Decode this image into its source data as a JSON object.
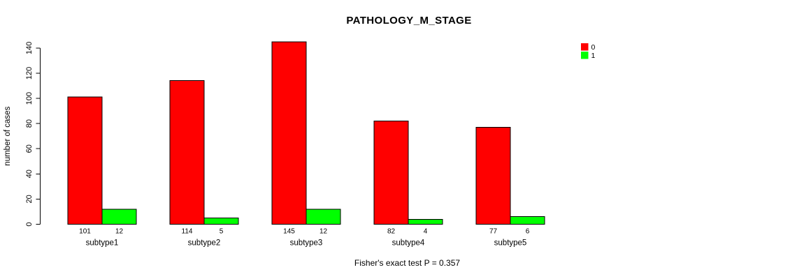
{
  "title": "PATHOLOGY_M_STAGE",
  "caption": "Fisher's exact test P = 0.357",
  "chart_data": {
    "type": "bar",
    "title": "PATHOLOGY_M_STAGE",
    "categories": [
      "subtype1",
      "subtype2",
      "subtype3",
      "subtype4",
      "subtype5"
    ],
    "series": [
      {
        "name": "0",
        "color": "#FF0000",
        "values": [
          101,
          114,
          145,
          82,
          77
        ]
      },
      {
        "name": "1",
        "color": "#00FF00",
        "values": [
          12,
          5,
          12,
          4,
          6
        ]
      }
    ],
    "xlabel": "",
    "ylabel": "number of cases",
    "ylim": [
      0,
      140
    ],
    "yticks": [
      0,
      20,
      40,
      60,
      80,
      100,
      120,
      140
    ],
    "grid": false,
    "legend_position": "top-right",
    "bar_value_labels": true,
    "annotation": "Fisher's exact test P = 0.357"
  }
}
